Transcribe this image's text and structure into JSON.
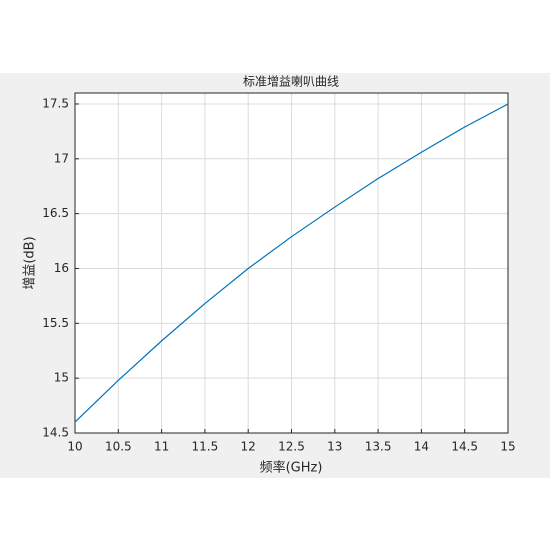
{
  "chart_data": {
    "type": "line",
    "title": "标准增益喇叭曲线",
    "x_label": "频率(GHz)",
    "y_label": "增益(dB)",
    "x": [
      10,
      10.5,
      11,
      11.5,
      12,
      12.5,
      13,
      13.5,
      14,
      14.5,
      15
    ],
    "series": [
      {
        "color": "#0072bd",
        "values": [
          14.6,
          14.98,
          15.34,
          15.68,
          16.0,
          16.29,
          16.56,
          16.82,
          17.06,
          17.29,
          17.5
        ]
      }
    ],
    "xlim": [
      10,
      15
    ],
    "xticks": [
      10,
      10.5,
      11,
      11.5,
      12,
      12.5,
      13,
      13.5,
      14,
      14.5,
      15
    ],
    "ylim": [
      14.5,
      17.6
    ],
    "yticks": [
      14.5,
      15,
      15.5,
      16,
      16.5,
      17,
      17.5
    ],
    "grid": true
  }
}
